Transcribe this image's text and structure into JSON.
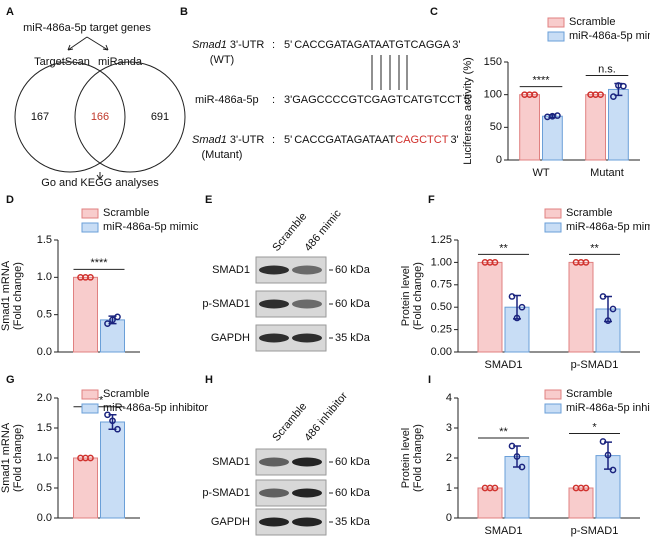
{
  "venn": {
    "label": "A",
    "title": "miR-486a-5p target genes",
    "left": "TargetScan",
    "right": "miRanda",
    "left_only": 167,
    "both": 166,
    "right_only": 691,
    "footer": "Go and KEGG analyses"
  },
  "sequences": {
    "label": "B",
    "separator": ":",
    "rows": [
      {
        "gene": "Smad1",
        "name": "3'-UTR",
        "sub": "(WT)",
        "parts": [
          "5'",
          "CACCGATAGATAATGTCAGGA",
          "3'"
        ]
      },
      {
        "name": "miR-486a-5p",
        "parts": [
          "3'GAGCCCCGTCGAGTCATGTCCT",
          "5'"
        ]
      },
      {
        "gene": "Smad1",
        "name": "3'-UTR",
        "sub": "(Mutant)",
        "parts": [
          "5'",
          "CACCGATAGATAAT",
          "CAGCTCT",
          "3'"
        ]
      }
    ]
  },
  "blots": [
    {
      "label": "E",
      "columns": [
        "Scramble",
        "486 mimic"
      ],
      "rows": [
        "SMAD1",
        "p-SMAD1",
        "GAPDH"
      ],
      "markers": [
        "60 kDa",
        "60 kDa",
        "35 kDa"
      ]
    },
    {
      "label": "H",
      "columns": [
        "Scramble",
        "486 inhibitor"
      ],
      "rows": [
        "SMAD1",
        "p-SMAD1",
        "GAPDH"
      ],
      "markers": [
        "60 kDa",
        "60 kDa",
        "35 kDa"
      ]
    }
  ],
  "chart_data": [
    {
      "type": "bar",
      "label": "C",
      "ylabel": [
        "Luciferase activity (%)"
      ],
      "categories": [
        "WT",
        "Mutant"
      ],
      "series": [
        {
          "name": "Scramble",
          "color": "#f8cccc",
          "edge": "#e08080",
          "values": [
            100,
            100
          ],
          "points": [
            [
              100,
              100,
              100
            ],
            [
              100,
              100,
              100
            ]
          ]
        },
        {
          "name": "miR-486a-5p mimic",
          "color": "#c8ddf5",
          "edge": "#6a9fd8",
          "values": [
            67,
            108
          ],
          "errors": [
            2,
            9
          ],
          "points": [
            [
              66,
              67,
              68
            ],
            [
              97,
              114,
              113
            ]
          ]
        }
      ],
      "significance": [
        "****",
        "n.s."
      ],
      "ylim": [
        0,
        150
      ],
      "yticks": [
        0,
        50,
        100,
        150
      ]
    },
    {
      "type": "bar",
      "label": "D",
      "ylabel": [
        "Smad1 mRNA",
        "(Fold change)"
      ],
      "categories": [
        null
      ],
      "series": [
        {
          "name": "Scramble",
          "color": "#f8cccc",
          "edge": "#e08080",
          "values": [
            1
          ],
          "points": [
            [
              1,
              1,
              1
            ]
          ]
        },
        {
          "name": "miR-486a-5p mimic",
          "color": "#c8ddf5",
          "edge": "#6a9fd8",
          "values": [
            0.43
          ],
          "errors": [
            0.05
          ],
          "points": [
            [
              0.38,
              0.43,
              0.47
            ]
          ]
        }
      ],
      "significance": [
        "****"
      ],
      "ylim": [
        0,
        1.5
      ],
      "yticks": [
        {
          "value": 0,
          "label": "0.0"
        },
        {
          "value": 0.5,
          "label": "0.5"
        },
        {
          "value": 1,
          "label": "1.0"
        },
        {
          "value": 1.5,
          "label": "1.5"
        }
      ]
    },
    {
      "type": "bar",
      "label": "F",
      "ylabel": [
        "Protein level",
        "(Fold change)"
      ],
      "categories": [
        "SMAD1",
        "p-SMAD1"
      ],
      "series": [
        {
          "name": "Scramble",
          "color": "#f8cccc",
          "edge": "#e08080",
          "values": [
            1,
            1
          ],
          "points": [
            [
              1,
              1,
              1
            ],
            [
              1,
              1,
              1
            ]
          ]
        },
        {
          "name": "miR-486a-5p mimic",
          "color": "#c8ddf5",
          "edge": "#6a9fd8",
          "values": [
            0.5,
            0.48
          ],
          "errors": [
            0.13,
            0.14
          ],
          "points": [
            [
              0.62,
              0.38,
              0.5
            ],
            [
              0.62,
              0.35,
              0.48
            ]
          ]
        }
      ],
      "significance": [
        "**",
        "**"
      ],
      "ylim": [
        0,
        1.25
      ],
      "yticks": [
        {
          "value": 0,
          "label": "0.00"
        },
        {
          "value": 0.25,
          "label": "0.25"
        },
        {
          "value": 0.5,
          "label": "0.50"
        },
        {
          "value": 0.75,
          "label": "0.75"
        },
        {
          "value": 1,
          "label": "1.00"
        },
        {
          "value": 1.25,
          "label": "1.25"
        }
      ]
    },
    {
      "type": "bar",
      "label": "G",
      "ylabel": [
        "Smad1 mRNA",
        "(Fold change)"
      ],
      "categories": [
        null
      ],
      "series": [
        {
          "name": "Scramble",
          "color": "#f8cccc",
          "edge": "#e08080",
          "values": [
            1
          ],
          "points": [
            [
              1,
              1,
              1
            ]
          ]
        },
        {
          "name": "miR-486a-5p inhibitor",
          "color": "#c8ddf5",
          "edge": "#6a9fd8",
          "values": [
            1.6
          ],
          "errors": [
            0.12
          ],
          "points": [
            [
              1.72,
              1.62,
              1.48
            ]
          ]
        }
      ],
      "significance": [
        "**"
      ],
      "ylim": [
        0,
        2
      ],
      "yticks": [
        {
          "value": 0,
          "label": "0.0"
        },
        {
          "value": 0.5,
          "label": "0.5"
        },
        {
          "value": 1,
          "label": "1.0"
        },
        {
          "value": 1.5,
          "label": "1.5"
        },
        {
          "value": 2,
          "label": "2.0"
        }
      ]
    },
    {
      "type": "bar",
      "label": "I",
      "ylabel": [
        "Protein level",
        "(Fold change)"
      ],
      "categories": [
        "SMAD1",
        "p-SMAD1"
      ],
      "series": [
        {
          "name": "Scramble",
          "color": "#f8cccc",
          "edge": "#e08080",
          "values": [
            1,
            1
          ],
          "points": [
            [
              1,
              1,
              1
            ],
            [
              1,
              1,
              1
            ]
          ]
        },
        {
          "name": "miR-486a-5p inhibitor",
          "color": "#c8ddf5",
          "edge": "#6a9fd8",
          "values": [
            2.05,
            2.08
          ],
          "errors": [
            0.35,
            0.45
          ],
          "points": [
            [
              2.4,
              2.05,
              1.7
            ],
            [
              2.55,
              2.1,
              1.6
            ]
          ]
        }
      ],
      "significance": [
        "**",
        "*"
      ],
      "ylim": [
        0,
        4
      ],
      "yticks": [
        0,
        1,
        2,
        3,
        4
      ]
    }
  ]
}
